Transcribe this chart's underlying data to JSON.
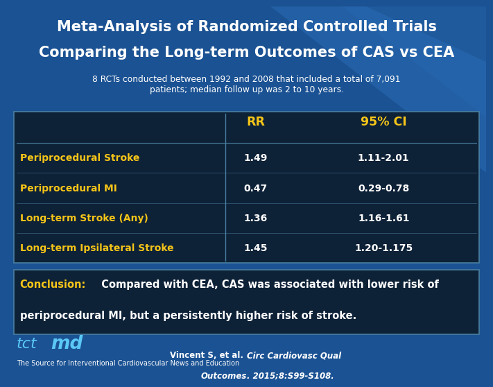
{
  "title_line1": "Meta-Analysis of Randomized Controlled Trials",
  "title_line2": "Comparing the Long-term Outcomes of CAS vs CEA",
  "subtitle": "8 RCTs conducted between 1992 and 2008 that included a total of 7,091\npatients; median follow up was 2 to 10 years.",
  "table_header": [
    "",
    "RR",
    "95% CI"
  ],
  "table_rows": [
    [
      "Periprocedural Stroke",
      "1.49",
      "1.11-2.01"
    ],
    [
      "Periprocedural MI",
      "0.47",
      "0.29-0.78"
    ],
    [
      "Long-term Stroke (Any)",
      "1.36",
      "1.16-1.61"
    ],
    [
      "Long-term Ipsilateral Stroke",
      "1.45",
      "1.20-1.175"
    ]
  ],
  "conclusion_label": "Conclusion:",
  "conclusion_text1": "  Compared with CEA, CAS was associated with lower risk of",
  "conclusion_text2": "periprocedural MI, but a persistently higher risk of stroke.",
  "citation1": "Vincent S, et al. ",
  "citation_italic": "Circ Cardiovasc Qual",
  "citation2_italic": "Outcomes",
  "citation2_plain": ". 2015;8:S99-S108.",
  "footer_text": "The Source for Interventional Cardiovascular News and Education",
  "bg_color": "#1b5293",
  "table_bg": "#0d2137",
  "table_header_color": "#f5c518",
  "table_row_color": "#ffffff",
  "table_label_color": "#f5c518",
  "conclusion_box_bg": "#0d2137",
  "conclusion_label_color": "#f5c518",
  "conclusion_text_color": "#ffffff",
  "title_color": "#ffffff",
  "subtitle_color": "#ffffff",
  "divider_color": "#4a7fa0",
  "tctmd_color": "#5bc8f5"
}
